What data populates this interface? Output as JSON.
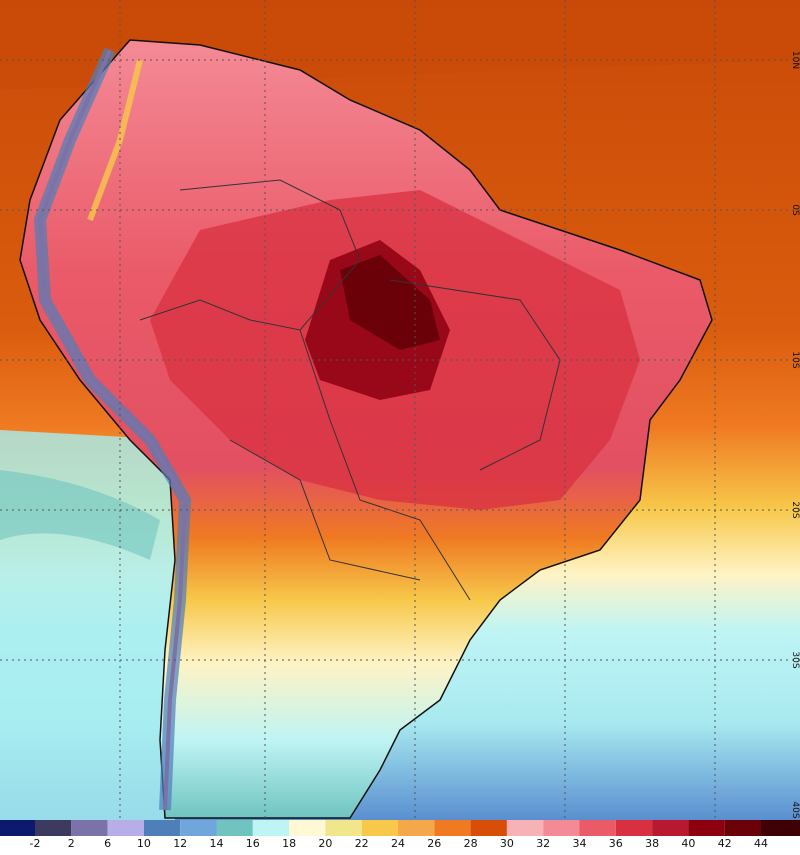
{
  "map": {
    "lat_labels": [
      "10N",
      "0S",
      "10S",
      "20S",
      "30S",
      "40S"
    ],
    "legend": {
      "labels": [
        "-2",
        "2",
        "6",
        "10",
        "12",
        "14",
        "16",
        "18",
        "20",
        "22",
        "24",
        "26",
        "28",
        "30",
        "32",
        "34",
        "36",
        "38",
        "40",
        "42",
        "44"
      ],
      "colors": [
        "#0c1a6e",
        "#3c3a5e",
        "#7a72a8",
        "#b7aee8",
        "#4f7fb8",
        "#6fa6dc",
        "#6fc4c0",
        "#bff4f4",
        "#fff8d4",
        "#f2e68a",
        "#f7c84a",
        "#f5a84a",
        "#ef7a22",
        "#d64e08",
        "#f7b2b8",
        "#f48a96",
        "#ea5a68",
        "#d83040",
        "#b81830",
        "#8c0010",
        "#6a0008",
        "#3e0004"
      ]
    }
  }
}
